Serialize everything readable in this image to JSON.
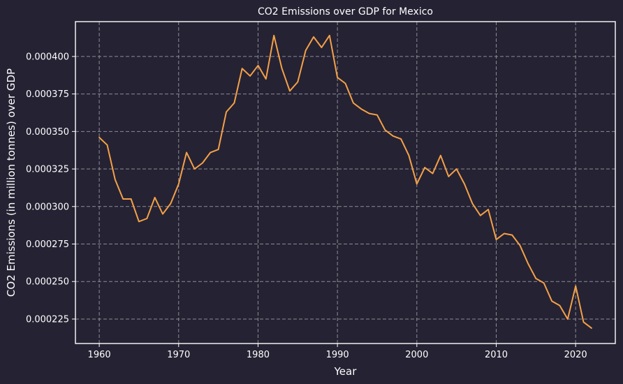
{
  "chart_data": {
    "type": "line",
    "title": "CO2 Emissions over GDP for Mexico",
    "xlabel": "Year",
    "ylabel": "CO2 Emissions (in million tonnes) over GDP",
    "xlim": [
      1957,
      2025
    ],
    "ylim": [
      0.0002087,
      0.0004232
    ],
    "xticks": [
      1960,
      1970,
      1980,
      1990,
      2000,
      2010,
      2020
    ],
    "yticks": [
      0.000225,
      0.00025,
      0.000275,
      0.0003,
      0.000325,
      0.00035,
      0.000375,
      0.0004
    ],
    "ytick_labels": [
      "0.000225",
      "0.000250",
      "0.000275",
      "0.000300",
      "0.000325",
      "0.000350",
      "0.000375",
      "0.000400"
    ],
    "grid": true,
    "line_color": "#f5a147",
    "series": [
      {
        "x": [
          1960,
          1961,
          1962,
          1963,
          1964,
          1965,
          1966,
          1967,
          1968,
          1969,
          1970,
          1971,
          1972,
          1973,
          1974,
          1975,
          1976,
          1977,
          1978,
          1979,
          1980,
          1981,
          1982,
          1983,
          1984,
          1985,
          1986,
          1987,
          1988,
          1989,
          1990,
          1991,
          1992,
          1993,
          1994,
          1995,
          1996,
          1997,
          1998,
          1999,
          2000,
          2001,
          2002,
          2003,
          2004,
          2005,
          2006,
          2007,
          2008,
          2009,
          2010,
          2011,
          2012,
          2013,
          2014,
          2015,
          2016,
          2017,
          2018,
          2019,
          2020,
          2021,
          2022
        ],
        "values": [
          0.000346,
          0.000341,
          0.000318,
          0.000305,
          0.000305,
          0.00029,
          0.000292,
          0.000306,
          0.000295,
          0.000302,
          0.000315,
          0.000336,
          0.000325,
          0.000329,
          0.000336,
          0.000338,
          0.000363,
          0.000369,
          0.000392,
          0.000387,
          0.000394,
          0.000385,
          0.000414,
          0.000392,
          0.000377,
          0.000383,
          0.000404,
          0.000413,
          0.000406,
          0.000414,
          0.000386,
          0.000382,
          0.000369,
          0.000365,
          0.000362,
          0.000361,
          0.000351,
          0.000347,
          0.000345,
          0.000334,
          0.000315,
          0.000326,
          0.000322,
          0.000334,
          0.00032,
          0.000325,
          0.000315,
          0.000302,
          0.000294,
          0.000298,
          0.000278,
          0.000282,
          0.000281,
          0.000274,
          0.000262,
          0.000252,
          0.000249,
          0.000237,
          0.000234,
          0.000225,
          0.000247,
          0.000223,
          0.000219
        ]
      }
    ]
  }
}
